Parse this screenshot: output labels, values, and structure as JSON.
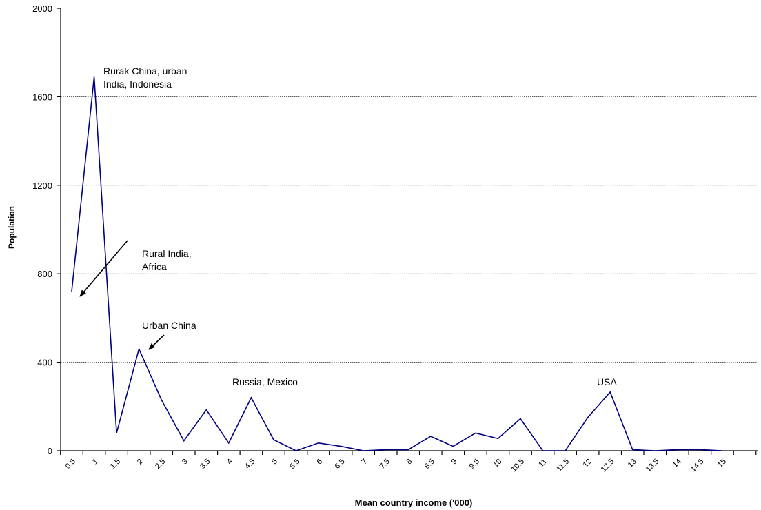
{
  "chart_data": {
    "type": "line",
    "title": "",
    "xlabel": "Mean country income ('000)",
    "ylabel": "Population",
    "ylim": [
      0,
      2000
    ],
    "yticks": [
      0,
      400,
      800,
      1200,
      1600,
      2000
    ],
    "grid": "horizontal dotted",
    "legend": "none",
    "line_color": "#000080",
    "categories": [
      "0.5",
      "1",
      "1.5",
      "2",
      "2.5",
      "3",
      "3.5",
      "4",
      "4.5",
      "5",
      "5.5",
      "6",
      "6.5",
      "7",
      "7.5",
      "8",
      "8.5",
      "9",
      "9.5",
      "10",
      "10.5",
      "11",
      "11.5",
      "12",
      "12.5",
      "13",
      "13.5",
      "14",
      "14.5",
      "15"
    ],
    "series": [
      {
        "values": [
          720,
          1690,
          80,
          460,
          230,
          45,
          185,
          35,
          240,
          50,
          0,
          35,
          20,
          0,
          5,
          5,
          65,
          20,
          80,
          55,
          145,
          0,
          0,
          150,
          265,
          5,
          0,
          5,
          5,
          0
        ]
      }
    ],
    "tick_labels": [
      "0.5",
      "1",
      "1.5",
      "2",
      "2.5",
      "3",
      "3.5",
      "4",
      "4.5",
      "5",
      "5.5",
      "6",
      "6.5",
      "7",
      "7.5",
      "8",
      "8.5",
      "9",
      "9.5",
      "10",
      "10.5",
      "11",
      "11.5",
      "12",
      "12.5",
      "13",
      "13.5",
      "14",
      "14.5",
      "15"
    ],
    "annotations": [
      {
        "text_lines": [
          "Rurak China, urban",
          "India, Indonesia"
        ]
      },
      {
        "text_lines": [
          "Rural India,",
          "Africa"
        ]
      },
      {
        "text_lines": [
          "Urban China"
        ]
      },
      {
        "text_lines": [
          "Russia, Mexico"
        ]
      },
      {
        "text_lines": [
          "USA"
        ]
      }
    ]
  }
}
